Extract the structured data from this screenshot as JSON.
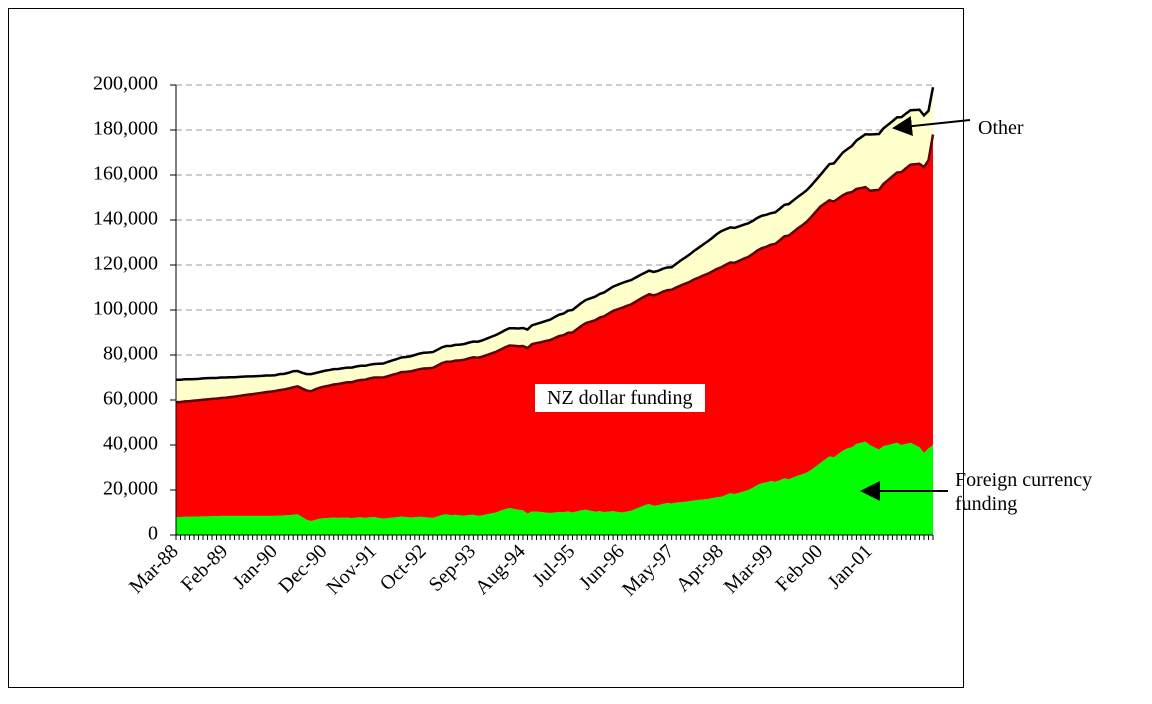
{
  "chart_data": {
    "type": "stacked-area",
    "categories": [
      "Mar-88",
      null,
      null,
      null,
      null,
      null,
      null,
      null,
      null,
      null,
      null,
      "Feb-89",
      null,
      null,
      null,
      null,
      null,
      null,
      null,
      null,
      null,
      null,
      "Jan-90",
      null,
      null,
      null,
      null,
      null,
      null,
      null,
      null,
      null,
      null,
      "Dec-90",
      null,
      null,
      null,
      null,
      null,
      null,
      null,
      null,
      null,
      null,
      "Nov-91",
      null,
      null,
      null,
      null,
      null,
      null,
      null,
      null,
      null,
      null,
      "Oct-92",
      null,
      null,
      null,
      null,
      null,
      null,
      null,
      null,
      null,
      null,
      "Sep-93",
      null,
      null,
      null,
      null,
      null,
      null,
      null,
      null,
      null,
      null,
      "Aug-94",
      null,
      null,
      null,
      null,
      null,
      null,
      null,
      null,
      null,
      null,
      "Jul-95",
      null,
      null,
      null,
      null,
      null,
      null,
      null,
      null,
      null,
      null,
      "Jun-96",
      null,
      null,
      null,
      null,
      null,
      null,
      null,
      null,
      null,
      null,
      "May-97",
      null,
      null,
      null,
      null,
      null,
      null,
      null,
      null,
      null,
      null,
      "Apr-98",
      null,
      null,
      null,
      null,
      null,
      null,
      null,
      null,
      null,
      null,
      "Mar-99",
      null,
      null,
      null,
      null,
      null,
      null,
      null,
      null,
      null,
      null,
      "Feb-00",
      null,
      null,
      null,
      null,
      null,
      null,
      null,
      null,
      null,
      null,
      "Jan-01",
      null,
      null,
      null,
      null,
      null,
      null,
      null,
      null,
      null,
      null,
      null,
      null,
      null,
      null
    ],
    "series": [
      {
        "name": "Foreign currency funding",
        "color": "#00ff00",
        "values": [
          8000,
          8000,
          8100,
          8100,
          8200,
          8200,
          8300,
          8300,
          8400,
          8400,
          8500,
          8500,
          8500,
          8500,
          8500,
          8500,
          8500,
          8500,
          8500,
          8500,
          8500,
          8500,
          8500,
          8600,
          8700,
          8800,
          9000,
          9200,
          8000,
          6800,
          6200,
          6800,
          7300,
          7500,
          7600,
          7800,
          7600,
          7700,
          7800,
          7500,
          7800,
          7900,
          7600,
          7900,
          8000,
          7600,
          7300,
          7500,
          7700,
          7900,
          8200,
          8000,
          7800,
          7900,
          8100,
          8000,
          7700,
          7600,
          8200,
          8900,
          9200,
          8800,
          9000,
          8700,
          8600,
          8900,
          9000,
          8500,
          8800,
          9200,
          9600,
          10000,
          10800,
          11500,
          12000,
          11600,
          11200,
          11000,
          9500,
          10500,
          10400,
          10200,
          10000,
          9800,
          10000,
          10300,
          10100,
          10500,
          10000,
          10500,
          11000,
          11200,
          10800,
          10400,
          10600,
          10200,
          10400,
          10600,
          10300,
          10000,
          10400,
          10800,
          11600,
          12400,
          13200,
          13800,
          13000,
          13200,
          13800,
          14200,
          14000,
          14400,
          14600,
          14800,
          15000,
          15400,
          15600,
          15800,
          16000,
          16400,
          16800,
          17000,
          17800,
          18600,
          18200,
          18800,
          19400,
          20000,
          21000,
          22200,
          23000,
          23400,
          24000,
          23600,
          24400,
          25200,
          24800,
          25600,
          26400,
          27000,
          27800,
          29000,
          30500,
          32000,
          33500,
          35000,
          34500,
          36000,
          37500,
          38500,
          39000,
          40500,
          41000,
          41500,
          40000,
          39000,
          38000,
          39500,
          40000,
          40500,
          41000,
          40000,
          40500,
          41000,
          40000,
          39000,
          36500,
          38500,
          40000
        ]
      },
      {
        "name": "NZ dollar funding",
        "color": "#ff0000",
        "edge": "#600000",
        "values": [
          51000,
          51100,
          51300,
          51400,
          51500,
          51700,
          51800,
          52000,
          52100,
          52200,
          52400,
          52500,
          52800,
          53000,
          53300,
          53600,
          53900,
          54100,
          54400,
          54700,
          55000,
          55200,
          55500,
          55800,
          56000,
          56300,
          56600,
          56900,
          57100,
          57400,
          57700,
          58000,
          58200,
          58500,
          58800,
          59100,
          59500,
          59800,
          60100,
          60400,
          60700,
          61000,
          61400,
          61700,
          62000,
          62400,
          62700,
          63100,
          63500,
          63800,
          64200,
          64500,
          64900,
          65300,
          65600,
          66000,
          66400,
          66700,
          67100,
          67500,
          67800,
          68200,
          68500,
          68900,
          69300,
          69600,
          70000,
          70300,
          70500,
          70800,
          71100,
          71400,
          71600,
          71900,
          72200,
          72500,
          72700,
          73000,
          73600,
          74300,
          74900,
          75500,
          76200,
          76800,
          77500,
          78100,
          78700,
          79400,
          80000,
          81000,
          82000,
          83000,
          84000,
          85000,
          86000,
          87000,
          88000,
          89000,
          90000,
          91000,
          91400,
          91700,
          92100,
          92500,
          92800,
          93200,
          93500,
          93900,
          94300,
          94600,
          95000,
          95600,
          96300,
          96900,
          97500,
          98200,
          98800,
          99500,
          100100,
          100700,
          101400,
          102000,
          102300,
          102500,
          102800,
          103100,
          103400,
          103600,
          103900,
          104200,
          104500,
          104700,
          105000,
          105800,
          106600,
          107500,
          108300,
          109100,
          109900,
          110700,
          111500,
          112400,
          113200,
          114000,
          113900,
          113800,
          113700,
          113600,
          113500,
          113500,
          113400,
          113300,
          113200,
          113100,
          113000,
          114200,
          115400,
          116500,
          117700,
          118900,
          120100,
          121300,
          122500,
          123600,
          124800,
          126000,
          127000,
          128000,
          138000
        ]
      },
      {
        "name": "Other",
        "color": "#ffffcc",
        "edge": "#000000",
        "values": [
          10000,
          9900,
          9800,
          9700,
          9600,
          9500,
          9500,
          9400,
          9300,
          9200,
          9100,
          9000,
          8800,
          8600,
          8500,
          8300,
          8100,
          7900,
          7700,
          7500,
          7400,
          7200,
          7000,
          7100,
          6900,
          7000,
          7200,
          6800,
          7000,
          7300,
          7600,
          7200,
          7000,
          7000,
          6900,
          6800,
          6700,
          6600,
          6500,
          6500,
          6400,
          6300,
          6200,
          6100,
          6000,
          6100,
          6200,
          6300,
          6400,
          6500,
          6500,
          6600,
          6700,
          6800,
          6900,
          7000,
          7000,
          7000,
          7000,
          7000,
          7000,
          7000,
          7000,
          7000,
          7000,
          7000,
          7000,
          7100,
          7200,
          7300,
          7400,
          7500,
          7500,
          7600,
          7700,
          7800,
          7900,
          8000,
          8200,
          8400,
          8500,
          8700,
          8900,
          9100,
          9300,
          9500,
          9600,
          9800,
          10000,
          10100,
          10200,
          10300,
          10400,
          10500,
          10500,
          10600,
          10700,
          10800,
          10900,
          11000,
          10900,
          10800,
          10700,
          10600,
          10500,
          10500,
          10400,
          10300,
          10200,
          10100,
          10000,
          10500,
          11100,
          11600,
          12200,
          12700,
          13300,
          13800,
          14400,
          14900,
          15500,
          16000,
          15800,
          15600,
          15500,
          15300,
          15100,
          14900,
          14700,
          14500,
          14400,
          14200,
          14000,
          14000,
          14000,
          14000,
          14000,
          14000,
          14000,
          14000,
          14000,
          14000,
          14000,
          14000,
          15000,
          16000,
          17000,
          18000,
          19000,
          19500,
          20500,
          21500,
          22500,
          23500,
          25000,
          24900,
          24800,
          24700,
          24600,
          24500,
          24500,
          24400,
          24300,
          24200,
          24100,
          24000,
          23000,
          22000,
          21000
        ]
      }
    ],
    "ylim": [
      0,
      200000
    ],
    "yticks": [
      0,
      {
        "value": 20000,
        "label": "20,000"
      },
      {
        "value": 40000,
        "label": "40,000"
      },
      {
        "value": 60000,
        "label": "60,000"
      },
      {
        "value": 80000,
        "label": "80,000"
      },
      {
        "value": 100000,
        "label": "100,000"
      },
      {
        "value": 120000,
        "label": "120,000"
      },
      {
        "value": 140000,
        "label": "140,000"
      },
      {
        "value": 160000,
        "label": "160,000"
      },
      {
        "value": 180000,
        "label": "180,000"
      },
      {
        "value": 200000,
        "label": "200,000"
      }
    ],
    "grid": true
  }
}
